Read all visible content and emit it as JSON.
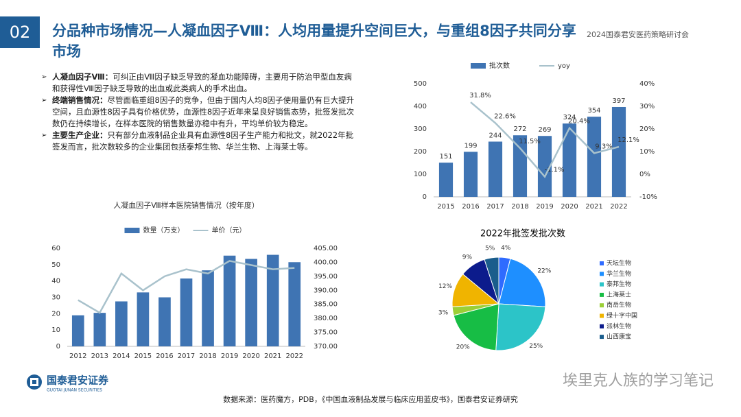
{
  "header": {
    "number": "02",
    "title": "分品种市场情况—人凝血因子Ⅷ：人均用量提升空间巨大，与重组8因子共同分享市场",
    "event": "2024国泰君安医药策略研讨会"
  },
  "bullets": [
    {
      "lead": "人凝血因子Ⅷ：",
      "text": "可纠正由Ⅷ因子缺乏导致的凝血功能障碍，主要用于防治甲型血友病和获得性Ⅷ因子缺乏导致的出血或此类病人的手术出血。"
    },
    {
      "lead": "终端销售情况：",
      "text": "尽管面临重组8因子的竞争，但由于国内人均8因子使用量仍有巨大提升空间，且血源性8因子具有价格优势，血源性8因子近年来呈良好销售态势，批签发批次数仍在持续增长，在样本医院的销售数量亦稳中有升，平均单价较为稳定。"
    },
    {
      "lead": "主要生产企业：",
      "text": "只有部分血液制品企业具有血源性8因子生产能力和批文，就2022年批签发而言，批次数较多的企业集团包括泰邦生物、华兰生物、上海莱士等。"
    }
  ],
  "chart_data": [
    {
      "type": "combo",
      "categories": [
        "2015",
        "2016",
        "2017",
        "2018",
        "2019",
        "2020",
        "2021",
        "2022"
      ],
      "series": [
        {
          "name": "批次数",
          "type": "bar",
          "color": "#3f74b3",
          "values": [
            151,
            199,
            244,
            272,
            269,
            324,
            354,
            397
          ]
        },
        {
          "name": "yoy",
          "type": "line",
          "axis": "y2",
          "color": "#a9c2cc",
          "values": [
            null,
            31.8,
            22.6,
            11.5,
            -1.1,
            20.4,
            9.3,
            12.1
          ],
          "value_labels": [
            null,
            "31.8%",
            "22.6%",
            "11.5%",
            "-1.1%",
            "20.4%",
            "9.3%",
            "12.1%"
          ]
        }
      ],
      "ylim": [
        0,
        500
      ],
      "yticks": [
        0,
        100,
        200,
        300,
        400,
        500
      ],
      "y2lim": [
        -10,
        40
      ],
      "y2ticks": [
        {
          "value": -10,
          "label": "-10%"
        },
        {
          "value": 0,
          "label": "0%"
        },
        {
          "value": 10,
          "label": "10%"
        },
        {
          "value": 20,
          "label": "20%"
        },
        {
          "value": 30,
          "label": "30%"
        },
        {
          "value": 40,
          "label": "40%"
        }
      ],
      "data_labels": true
    },
    {
      "type": "combo",
      "title": "人凝血因子Ⅷ样本医院销售情况（按年度）",
      "categories": [
        "2012",
        "2013",
        "2014",
        "2015",
        "2016",
        "2017",
        "2018",
        "2019",
        "2020",
        "2021",
        "2022"
      ],
      "series": [
        {
          "name": "数量（万支）",
          "type": "bar",
          "color": "#3f74b3",
          "values": [
            19,
            20.5,
            27.5,
            33,
            30,
            41.5,
            46.5,
            55.5,
            53.5,
            56,
            51.5
          ]
        },
        {
          "name": "单价（元）",
          "type": "line",
          "axis": "y2",
          "color": "#a9c2cc",
          "values": [
            386.5,
            382,
            396,
            390,
            395,
            397.5,
            396,
            400.5,
            399,
            397.5,
            398
          ]
        }
      ],
      "ylim": [
        0,
        60
      ],
      "yticks": [
        0,
        10,
        20,
        30,
        40,
        50,
        60
      ],
      "y2lim": [
        370,
        405
      ],
      "y2ticks": [
        {
          "value": 370,
          "label": "370.00"
        },
        {
          "value": 375,
          "label": "375.00"
        },
        {
          "value": 380,
          "label": "380.00"
        },
        {
          "value": 385,
          "label": "385.00"
        },
        {
          "value": 390,
          "label": "390.00"
        },
        {
          "value": 395,
          "label": "395.00"
        },
        {
          "value": 400,
          "label": "400.00"
        },
        {
          "value": 405,
          "label": "405.00"
        }
      ],
      "data_labels": false
    },
    {
      "type": "pie",
      "title": "2022年批签发批次数",
      "categories": [
        "天坛生物",
        "华兰生物",
        "泰邦生物",
        "上海莱士",
        "南岳生物",
        "绿十字中国",
        "派林生物",
        "山西康宝"
      ],
      "values": [
        4,
        22,
        25,
        20,
        3,
        12,
        9,
        5
      ],
      "value_labels": [
        "4%",
        "22%",
        "25%",
        "20%",
        "3%",
        "12%",
        "9%",
        "5%"
      ],
      "colors": [
        "#2f6bff",
        "#1e8fff",
        "#2cc4c8",
        "#17bd45",
        "#9bcf36",
        "#f0b400",
        "#0c1b8c",
        "#1a5d8c"
      ]
    }
  ],
  "footer": {
    "company": "国泰君安证券",
    "company_en": "GUOTAI JUNAN SECURITIES",
    "source": "数据来源：医药魔方，PDB，《中国血液制品发展与临床应用蓝皮书》，国泰君安证券研究",
    "watermark": "埃里克人族的学习笔记"
  }
}
